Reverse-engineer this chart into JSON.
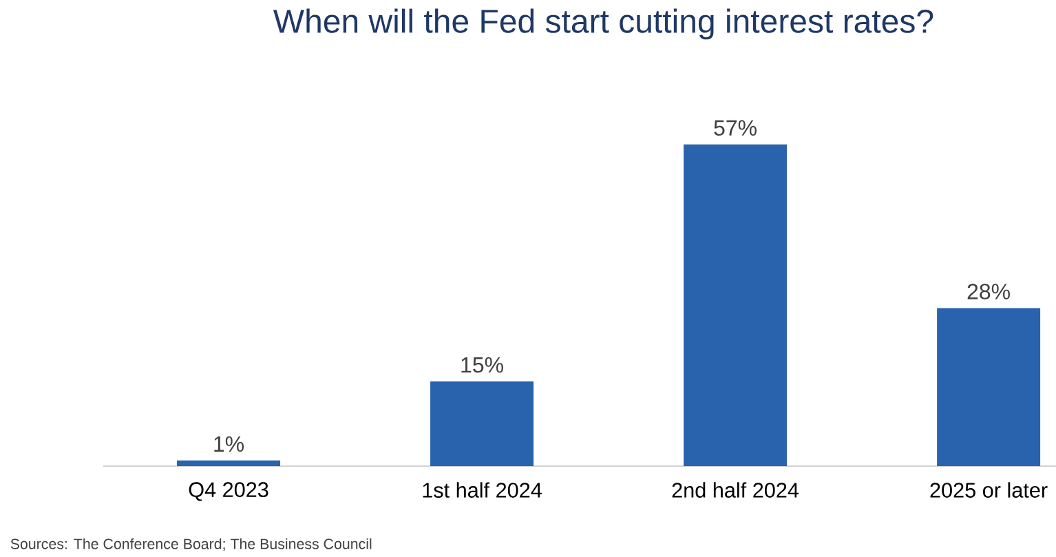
{
  "chart_data": {
    "type": "bar",
    "title": "When will the Fed start cutting interest rates?",
    "categories": [
      "Q4 2023",
      "1st half 2024",
      "2nd half 2024",
      "2025 or later"
    ],
    "values": [
      1,
      15,
      57,
      28
    ],
    "value_labels": [
      "1%",
      "15%",
      "57%",
      "28%"
    ],
    "color": "#2a63ad",
    "annotations": [
      "Sources: The  Conference Board; The Business Council"
    ]
  }
}
